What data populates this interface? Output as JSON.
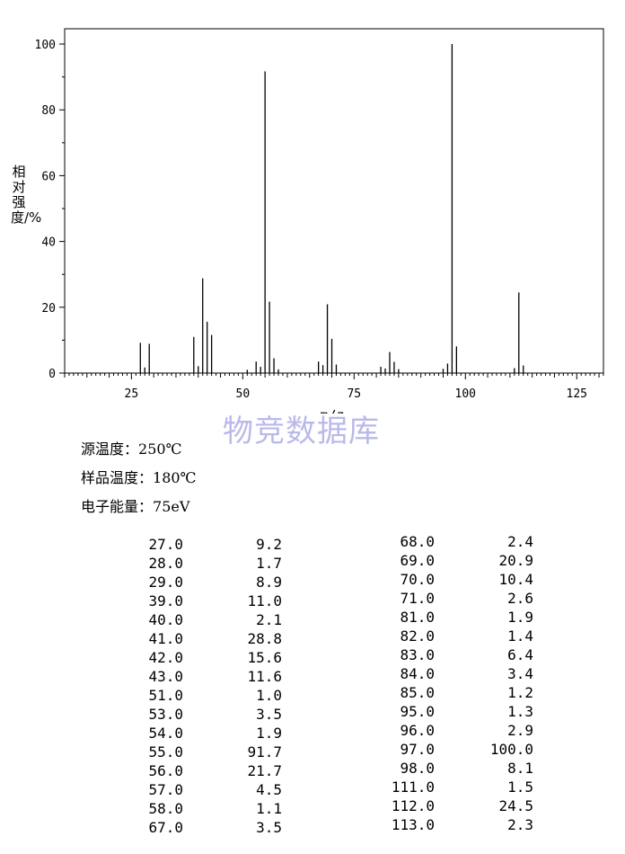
{
  "watermark": "物竞数据库",
  "conditions": [
    {
      "label": "源温度：",
      "value": "250℃"
    },
    {
      "label": "样品温度：",
      "value": "180℃"
    },
    {
      "label": "电子能量：",
      "value": "75eV"
    }
  ],
  "chart_data": {
    "type": "bar",
    "xlabel": "m/z",
    "ylabel": "相对强度/%",
    "xlim": [
      10,
      131
    ],
    "ylim": [
      0,
      100
    ],
    "xticks": [
      25,
      50,
      75,
      100,
      125
    ],
    "yticks": [
      0,
      20,
      40,
      60,
      80,
      100
    ],
    "grid": false,
    "x": [
      27,
      28,
      29,
      39,
      40,
      41,
      42,
      43,
      51,
      53,
      54,
      55,
      56,
      57,
      58,
      67,
      68,
      69,
      70,
      71,
      81,
      82,
      83,
      84,
      85,
      95,
      96,
      97,
      98,
      111,
      112,
      113
    ],
    "values": [
      9.2,
      1.7,
      8.9,
      11.0,
      2.1,
      28.8,
      15.6,
      11.6,
      1.0,
      3.5,
      1.9,
      91.7,
      21.7,
      4.5,
      1.1,
      3.5,
      2.4,
      20.9,
      10.4,
      2.6,
      1.9,
      1.4,
      6.4,
      3.4,
      1.2,
      1.3,
      2.9,
      100.0,
      8.1,
      1.5,
      24.5,
      2.3
    ]
  },
  "peak_table": {
    "left": [
      {
        "mz": "27.0",
        "abundance": "9.2"
      },
      {
        "mz": "28.0",
        "abundance": "1.7"
      },
      {
        "mz": "29.0",
        "abundance": "8.9"
      },
      {
        "mz": "39.0",
        "abundance": "11.0"
      },
      {
        "mz": "40.0",
        "abundance": "2.1"
      },
      {
        "mz": "41.0",
        "abundance": "28.8"
      },
      {
        "mz": "42.0",
        "abundance": "15.6"
      },
      {
        "mz": "43.0",
        "abundance": "11.6"
      },
      {
        "mz": "51.0",
        "abundance": "1.0"
      },
      {
        "mz": "53.0",
        "abundance": "3.5"
      },
      {
        "mz": "54.0",
        "abundance": "1.9"
      },
      {
        "mz": "55.0",
        "abundance": "91.7"
      },
      {
        "mz": "56.0",
        "abundance": "21.7"
      },
      {
        "mz": "57.0",
        "abundance": "4.5"
      },
      {
        "mz": "58.0",
        "abundance": "1.1"
      },
      {
        "mz": "67.0",
        "abundance": "3.5"
      }
    ],
    "right": [
      {
        "mz": "68.0",
        "abundance": "2.4"
      },
      {
        "mz": "69.0",
        "abundance": "20.9"
      },
      {
        "mz": "70.0",
        "abundance": "10.4"
      },
      {
        "mz": "71.0",
        "abundance": "2.6"
      },
      {
        "mz": "81.0",
        "abundance": "1.9"
      },
      {
        "mz": "82.0",
        "abundance": "1.4"
      },
      {
        "mz": "83.0",
        "abundance": "6.4"
      },
      {
        "mz": "84.0",
        "abundance": "3.4"
      },
      {
        "mz": "85.0",
        "abundance": "1.2"
      },
      {
        "mz": "95.0",
        "abundance": "1.3"
      },
      {
        "mz": "96.0",
        "abundance": "2.9"
      },
      {
        "mz": "97.0",
        "abundance": "100.0"
      },
      {
        "mz": "98.0",
        "abundance": "8.1"
      },
      {
        "mz": "111.0",
        "abundance": "1.5"
      },
      {
        "mz": "112.0",
        "abundance": "24.5"
      },
      {
        "mz": "113.0",
        "abundance": "2.3"
      }
    ]
  }
}
